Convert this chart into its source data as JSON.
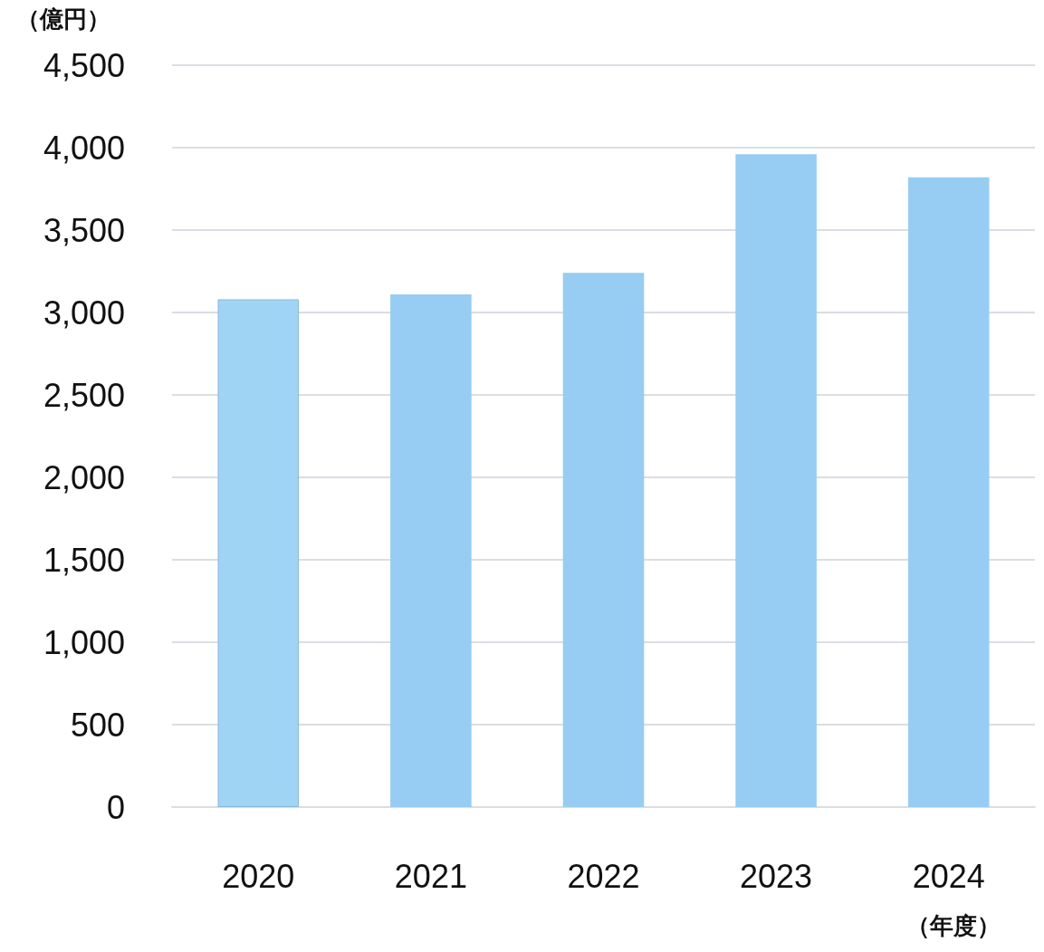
{
  "chart_data": {
    "type": "bar",
    "ylabel": "（億円）",
    "xlabel": "（年度）",
    "categories": [
      "2020",
      "2021",
      "2022",
      "2023",
      "2024"
    ],
    "values": [
      3080,
      3110,
      3240,
      3960,
      3820
    ],
    "colors": [
      "#a0d4f5",
      "#97cdf2",
      "#97cdf2",
      "#97cdf2",
      "#97cdf2"
    ],
    "ylim": [
      0,
      4500
    ],
    "yticks": [
      0,
      500,
      {
        "value": 1000,
        "label": "1,000"
      },
      {
        "value": 1500,
        "label": "1,500"
      },
      {
        "value": 2000,
        "label": "2,000"
      },
      {
        "value": 2500,
        "label": "2,500"
      },
      {
        "value": 3000,
        "label": "3,000"
      },
      {
        "value": 3500,
        "label": "3,500"
      },
      {
        "value": 4000,
        "label": "4,000"
      },
      {
        "value": 4500,
        "label": "4,500"
      }
    ],
    "grid": "y"
  }
}
